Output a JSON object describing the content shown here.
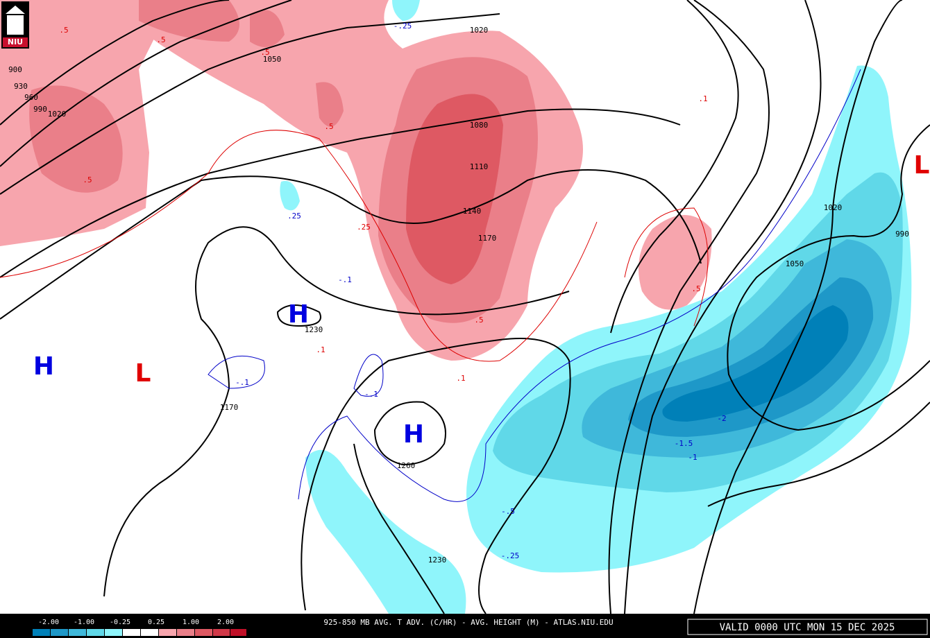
{
  "logo": "NIU",
  "title": "925-850 MB AVG. T ADV. (C/HR) - AVG. HEIGHT (M) - ATLAS.NIU.EDU",
  "valid": "VALID 0000 UTC MON 15 DEC 2025",
  "colorbar": [
    "-2.00",
    "-1.00",
    "-0.25",
    "0.25",
    "1.00",
    "2.00"
  ],
  "centers": [
    {
      "label": "H"
    },
    {
      "label": "L"
    },
    {
      "label": "H"
    },
    {
      "label": "H"
    },
    {
      "label": "L"
    }
  ],
  "height_labels": [
    "1020",
    "1050",
    "900",
    "930",
    "960",
    "990",
    "1020",
    "1080",
    "1110",
    "1140",
    "1170",
    "1230",
    "1170",
    "1260",
    "1230",
    "1020",
    "990",
    "1050"
  ],
  "advection_labels": [
    ".5",
    ".5",
    ".5",
    ".5",
    ".5",
    ".25",
    ".5",
    ".1",
    ".1",
    ".5",
    ".1",
    "-.25",
    ".25",
    "-.1",
    "-.1",
    "-.1",
    "-2",
    "-1.5",
    "-1",
    "-.5",
    "-.25"
  ]
}
